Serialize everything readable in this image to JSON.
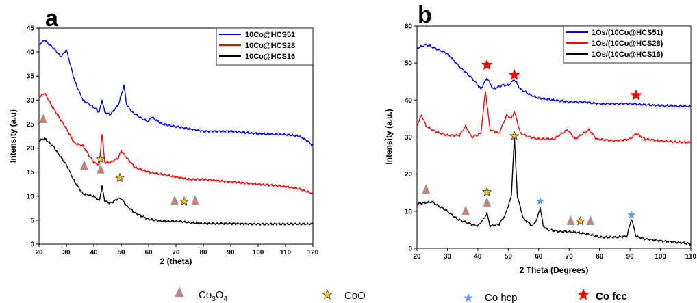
{
  "chart_data": [
    {
      "type": "line",
      "panel_label": "a",
      "xlabel": "2 (theta)",
      "ylabel": "Intensity (a.u)",
      "xlim": [
        20,
        120
      ],
      "ylim": [
        0,
        45
      ],
      "xticks": [
        "20",
        "30",
        "40",
        "50",
        "60",
        "70",
        "80",
        "90",
        "100",
        "110",
        "120"
      ],
      "yticks": [
        "0",
        "5",
        "10",
        "15",
        "20",
        "25",
        "30",
        "35",
        "40",
        "45"
      ],
      "legend_position": "top-right",
      "series": [
        {
          "name": "10Co@HCS51",
          "color": "#0000ff",
          "x": [
            20,
            22,
            25,
            28,
            30,
            33,
            36,
            40,
            42,
            43,
            44,
            46,
            49,
            50,
            51,
            52,
            54,
            58,
            60,
            61,
            65,
            70,
            75,
            80,
            90,
            100,
            110,
            115,
            118,
            120
          ],
          "y": [
            41.5,
            42.5,
            41,
            39,
            40.5,
            34,
            30,
            28.5,
            27.5,
            30,
            27.5,
            27,
            29,
            31,
            33,
            29,
            27.5,
            26,
            25.5,
            26.5,
            25,
            24.5,
            24,
            23.5,
            23.5,
            23,
            22.8,
            22.5,
            21.5,
            20.5
          ]
        },
        {
          "name": "10Co@HCS28",
          "color": "#ff0000",
          "x": [
            20,
            22,
            25,
            30,
            33,
            36,
            40,
            42,
            43,
            44,
            46,
            49,
            50,
            52,
            55,
            60,
            65,
            70,
            75,
            80,
            90,
            100,
            110,
            115,
            120
          ],
          "y": [
            30.5,
            31.5,
            28.5,
            24,
            21,
            20.5,
            17,
            16.5,
            23,
            17,
            17,
            18,
            19.5,
            18,
            16,
            15,
            14.5,
            14,
            13.5,
            13.5,
            13,
            12.5,
            12,
            11.5,
            10.5
          ]
        },
        {
          "name": "10Co@HCS16",
          "color": "#000000",
          "x": [
            20,
            22,
            25,
            30,
            33,
            36,
            40,
            42,
            43,
            44,
            46,
            49,
            50,
            52,
            55,
            60,
            65,
            70,
            75,
            80,
            90,
            100,
            110,
            120
          ],
          "y": [
            21.5,
            22,
            20.5,
            16.5,
            13,
            10.5,
            10,
            9,
            12,
            9,
            8.5,
            9.5,
            9.5,
            8,
            6.5,
            5.2,
            4.8,
            4.8,
            4.5,
            4.3,
            4.3,
            4.2,
            4.2,
            4.2
          ]
        }
      ],
      "markers": [
        {
          "kind": "triangle",
          "x": 21.5,
          "y": 26
        },
        {
          "kind": "triangle",
          "x": 36.5,
          "y": 16.3
        },
        {
          "kind": "triangle",
          "x": 42.5,
          "y": 15.5
        },
        {
          "kind": "star-gold",
          "x": 42.5,
          "y": 17.7
        },
        {
          "kind": "star-gold",
          "x": 49.5,
          "y": 13.8
        },
        {
          "kind": "triangle",
          "x": 69.5,
          "y": 9
        },
        {
          "kind": "star-gold",
          "x": 73,
          "y": 8.9
        },
        {
          "kind": "triangle",
          "x": 77,
          "y": 9
        }
      ]
    },
    {
      "type": "line",
      "panel_label": "b",
      "xlabel": "2 Theta (Degrees)",
      "ylabel": "Intensity (a.u.)",
      "xlim": [
        20,
        110
      ],
      "ylim": [
        0,
        60
      ],
      "xticks": [
        "20",
        "30",
        "40",
        "50",
        "60",
        "70",
        "80",
        "90",
        "100",
        "110"
      ],
      "yticks": [
        "0",
        "10",
        "20",
        "30",
        "40",
        "50",
        "60"
      ],
      "legend_position": "top-right",
      "series": [
        {
          "name": "1Os/(10Co@HCS51)",
          "color": "#0000ff",
          "x": [
            20,
            23,
            26,
            30,
            34,
            38,
            41,
            43,
            45,
            48,
            50,
            52,
            54,
            57,
            60,
            65,
            70,
            75,
            80,
            90,
            100,
            110
          ],
          "y": [
            54,
            55,
            54,
            52.5,
            49,
            46,
            43,
            46,
            43,
            44,
            44,
            45.5,
            43,
            41.5,
            40.5,
            40,
            39.5,
            39.5,
            39,
            39,
            38.5,
            38.3
          ]
        },
        {
          "name": "1Os/(10Co@HCS28)",
          "color": "#ff0000",
          "x": [
            20,
            21.5,
            23,
            26,
            30,
            34,
            36,
            38,
            41,
            42.5,
            44,
            47,
            49.5,
            51,
            52,
            54,
            57,
            60,
            65,
            69.5,
            72,
            76.5,
            79,
            85,
            90,
            92,
            95,
            100,
            110
          ],
          "y": [
            33,
            36,
            33,
            31.5,
            30.5,
            30.5,
            33,
            30,
            31,
            42.5,
            32,
            31,
            36,
            35,
            37,
            31,
            30,
            29.5,
            29.5,
            32,
            29.5,
            32,
            29.5,
            29,
            29.5,
            31,
            29.5,
            29,
            28.5
          ]
        },
        {
          "name": "1Os/(10Co@HCS16)",
          "color": "#000000",
          "x": [
            20,
            25,
            30,
            33,
            36,
            40,
            42,
            43,
            44,
            47,
            49,
            51,
            52,
            53,
            55,
            58,
            59.5,
            60.5,
            61.5,
            63,
            67,
            70,
            75,
            78,
            80,
            85,
            89,
            90.5,
            92,
            95,
            100,
            110
          ],
          "y": [
            12,
            12.5,
            10,
            8,
            7,
            6,
            8,
            9.5,
            6,
            6.5,
            9,
            14,
            30,
            14,
            8,
            6,
            8,
            11,
            6,
            5,
            4.5,
            4.5,
            4,
            3.5,
            3,
            3,
            3.2,
            8,
            3.2,
            2.5,
            2,
            1.2
          ]
        }
      ],
      "markers": [
        {
          "kind": "star-red",
          "x": 43,
          "y": 49.5
        },
        {
          "kind": "star-red",
          "x": 52,
          "y": 46.8
        },
        {
          "kind": "star-red",
          "x": 92,
          "y": 41.3
        },
        {
          "kind": "triangle",
          "x": 23,
          "y": 15.8
        },
        {
          "kind": "triangle",
          "x": 36,
          "y": 10
        },
        {
          "kind": "triangle",
          "x": 43,
          "y": 12.3
        },
        {
          "kind": "star-gold",
          "x": 43,
          "y": 15.2
        },
        {
          "kind": "star-gold",
          "x": 52,
          "y": 30.3
        },
        {
          "kind": "star-blue",
          "x": 60.5,
          "y": 12.7
        },
        {
          "kind": "triangle",
          "x": 70.5,
          "y": 7.3
        },
        {
          "kind": "star-gold",
          "x": 73.7,
          "y": 7.3
        },
        {
          "kind": "triangle",
          "x": 77,
          "y": 7.3
        },
        {
          "kind": "star-blue",
          "x": 90.5,
          "y": 9
        }
      ]
    }
  ],
  "phase_legend": [
    {
      "kind": "triangle",
      "label_main": "Co",
      "sub1": "3",
      "mid": "O",
      "sub2": "4",
      "bold": false
    },
    {
      "kind": "star-gold",
      "label_main": "CoO",
      "sub1": "",
      "mid": "",
      "sub2": "",
      "bold": false
    },
    {
      "kind": "star-blue",
      "label_main": "Co hcp",
      "sub1": "",
      "mid": "",
      "sub2": "",
      "bold": false
    },
    {
      "kind": "star-red",
      "label_main": "Co fcc",
      "sub1": "",
      "mid": "",
      "sub2": "",
      "bold": true
    }
  ],
  "colors": {
    "triangle_fill": "#e07b54",
    "triangle_stroke": "#7f9cc8",
    "star_gold": "#f5c518",
    "star_blue": "#6a9fd8",
    "star_red": "#ff0000"
  }
}
